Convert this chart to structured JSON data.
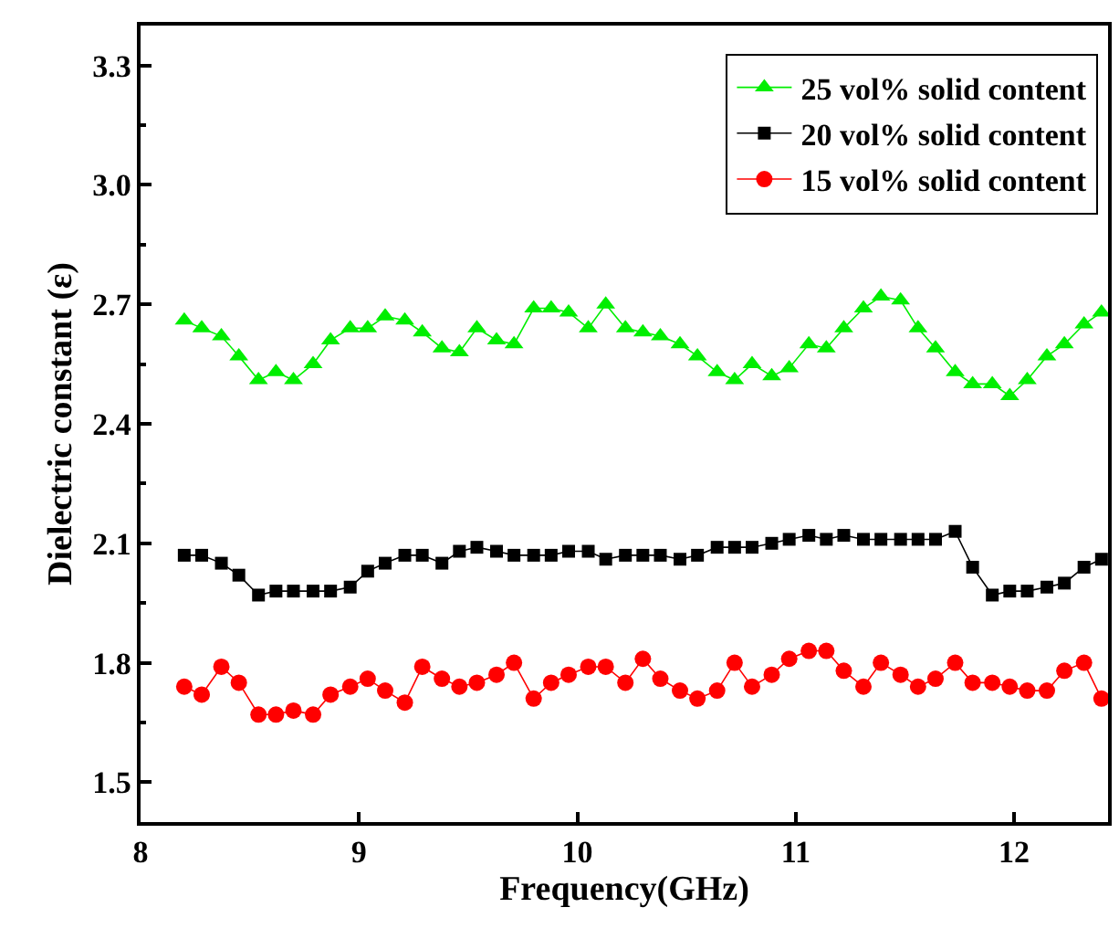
{
  "chart_data": {
    "type": "line",
    "xlabel": "Frequency(GHz)",
    "ylabel": "Dielectric constant (ε)",
    "x": [
      8.2,
      8.28,
      8.37,
      8.45,
      8.54,
      8.62,
      8.7,
      8.79,
      8.87,
      8.96,
      9.04,
      9.12,
      9.21,
      9.29,
      9.38,
      9.46,
      9.54,
      9.63,
      9.71,
      9.8,
      9.88,
      9.96,
      10.05,
      10.13,
      10.22,
      10.3,
      10.38,
      10.47,
      10.55,
      10.64,
      10.72,
      10.8,
      10.89,
      10.97,
      11.06,
      11.14,
      11.22,
      11.31,
      11.39,
      11.48,
      11.56,
      11.64,
      11.73,
      11.81,
      11.9,
      11.98,
      12.06,
      12.15,
      12.23,
      12.32,
      12.4
    ],
    "series": [
      {
        "name": "25 vol% solid content",
        "color": "#00ee00",
        "marker": "triangle",
        "values": [
          2.66,
          2.64,
          2.62,
          2.57,
          2.51,
          2.53,
          2.51,
          2.55,
          2.61,
          2.64,
          2.64,
          2.67,
          2.66,
          2.63,
          2.59,
          2.58,
          2.64,
          2.61,
          2.6,
          2.69,
          2.69,
          2.68,
          2.64,
          2.7,
          2.64,
          2.63,
          2.62,
          2.6,
          2.57,
          2.53,
          2.51,
          2.55,
          2.52,
          2.54,
          2.6,
          2.59,
          2.64,
          2.69,
          2.72,
          2.71,
          2.64,
          2.59,
          2.53,
          2.5,
          2.5,
          2.47,
          2.51,
          2.57,
          2.6,
          2.65,
          2.68
        ]
      },
      {
        "name": "20 vol% solid content",
        "color": "#000000",
        "marker": "square",
        "values": [
          2.07,
          2.07,
          2.05,
          2.02,
          1.97,
          1.98,
          1.98,
          1.98,
          1.98,
          1.99,
          2.03,
          2.05,
          2.07,
          2.07,
          2.05,
          2.08,
          2.09,
          2.08,
          2.07,
          2.07,
          2.07,
          2.08,
          2.08,
          2.06,
          2.07,
          2.07,
          2.07,
          2.06,
          2.07,
          2.09,
          2.09,
          2.09,
          2.1,
          2.11,
          2.12,
          2.11,
          2.12,
          2.11,
          2.11,
          2.11,
          2.11,
          2.11,
          2.13,
          2.04,
          1.97,
          1.98,
          1.98,
          1.99,
          2.0,
          2.04,
          2.06
        ]
      },
      {
        "name": "15 vol% solid content",
        "color": "#ff0000",
        "marker": "circle",
        "values": [
          1.74,
          1.72,
          1.79,
          1.75,
          1.67,
          1.67,
          1.68,
          1.67,
          1.72,
          1.74,
          1.76,
          1.73,
          1.7,
          1.79,
          1.76,
          1.74,
          1.75,
          1.77,
          1.8,
          1.71,
          1.75,
          1.77,
          1.79,
          1.79,
          1.75,
          1.81,
          1.76,
          1.73,
          1.71,
          1.73,
          1.8,
          1.74,
          1.77,
          1.81,
          1.83,
          1.83,
          1.78,
          1.74,
          1.8,
          1.77,
          1.74,
          1.76,
          1.8,
          1.75,
          1.75,
          1.74,
          1.73,
          1.73,
          1.78,
          1.8,
          1.71
        ]
      }
    ],
    "xlim": [
      8,
      12.43
    ],
    "ylim": [
      1.4,
      3.4
    ],
    "xticks": [
      8,
      9,
      10,
      11,
      12
    ],
    "yticks": [
      {
        "value": 1.5,
        "label": "1.5"
      },
      {
        "value": 1.8,
        "label": "1.8"
      },
      {
        "value": 2.1,
        "label": "2.1"
      },
      {
        "value": 2.4,
        "label": "2.4"
      },
      {
        "value": 2.7,
        "label": "2.7"
      },
      {
        "value": 3.0,
        "label": "3.0"
      },
      {
        "value": 3.3,
        "label": "3.3"
      }
    ],
    "legend": "top right",
    "line_style": "solid"
  }
}
